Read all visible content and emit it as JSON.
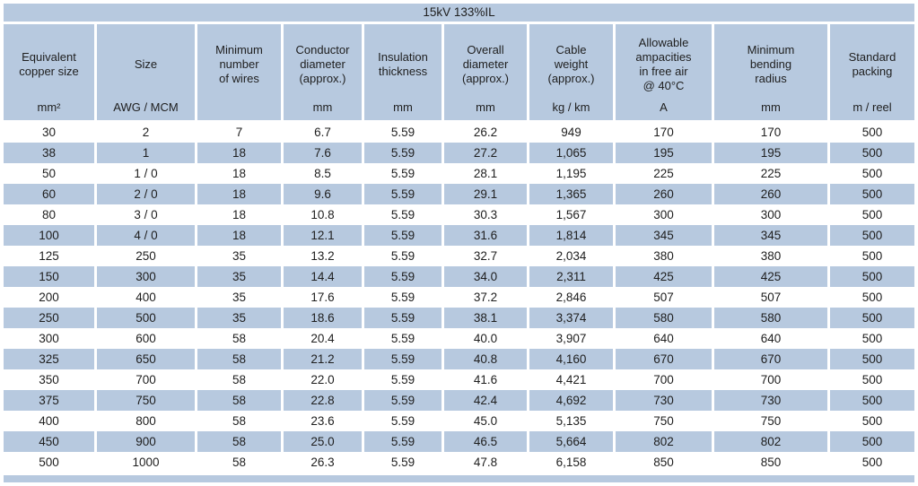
{
  "colors": {
    "accent_blue": "#b7c9df",
    "text": "#1e1e1e",
    "row_alt": "#ffffff"
  },
  "table": {
    "title": "15kV 133%IL",
    "columns": [
      {
        "label": "Equivalent\ncopper size",
        "unit": "mm²"
      },
      {
        "label": "Size",
        "unit": "AWG / MCM"
      },
      {
        "label": "Minimum\nnumber\nof wires",
        "unit": ""
      },
      {
        "label": "Conductor\ndiameter\n(approx.)",
        "unit": "mm"
      },
      {
        "label": "Insulation\nthickness",
        "unit": "mm"
      },
      {
        "label": "Overall\ndiameter\n(approx.)",
        "unit": "mm"
      },
      {
        "label": "Cable\nweight\n(approx.)",
        "unit": "kg / km"
      },
      {
        "label": "Allowable\nampacities\nin free air\n@ 40°C",
        "unit": "A"
      },
      {
        "label": "Minimum\nbending\nradius",
        "unit": "mm"
      },
      {
        "label": "Standard\npacking",
        "unit": "m / reel"
      }
    ],
    "rows": [
      [
        "30",
        "2",
        "7",
        "6.7",
        "5.59",
        "26.2",
        "949",
        "170",
        "170",
        "500"
      ],
      [
        "38",
        "1",
        "18",
        "7.6",
        "5.59",
        "27.2",
        "1,065",
        "195",
        "195",
        "500"
      ],
      [
        "50",
        "1 / 0",
        "18",
        "8.5",
        "5.59",
        "28.1",
        "1,195",
        "225",
        "225",
        "500"
      ],
      [
        "60",
        "2 / 0",
        "18",
        "9.6",
        "5.59",
        "29.1",
        "1,365",
        "260",
        "260",
        "500"
      ],
      [
        "80",
        "3 / 0",
        "18",
        "10.8",
        "5.59",
        "30.3",
        "1,567",
        "300",
        "300",
        "500"
      ],
      [
        "100",
        "4 / 0",
        "18",
        "12.1",
        "5.59",
        "31.6",
        "1,814",
        "345",
        "345",
        "500"
      ],
      [
        "125",
        "250",
        "35",
        "13.2",
        "5.59",
        "32.7",
        "2,034",
        "380",
        "380",
        "500"
      ],
      [
        "150",
        "300",
        "35",
        "14.4",
        "5.59",
        "34.0",
        "2,311",
        "425",
        "425",
        "500"
      ],
      [
        "200",
        "400",
        "35",
        "17.6",
        "5.59",
        "37.2",
        "2,846",
        "507",
        "507",
        "500"
      ],
      [
        "250",
        "500",
        "35",
        "18.6",
        "5.59",
        "38.1",
        "3,374",
        "580",
        "580",
        "500"
      ],
      [
        "300",
        "600",
        "58",
        "20.4",
        "5.59",
        "40.0",
        "3,907",
        "640",
        "640",
        "500"
      ],
      [
        "325",
        "650",
        "58",
        "21.2",
        "5.59",
        "40.8",
        "4,160",
        "670",
        "670",
        "500"
      ],
      [
        "350",
        "700",
        "58",
        "22.0",
        "5.59",
        "41.6",
        "4,421",
        "700",
        "700",
        "500"
      ],
      [
        "375",
        "750",
        "58",
        "22.8",
        "5.59",
        "42.4",
        "4,692",
        "730",
        "730",
        "500"
      ],
      [
        "400",
        "800",
        "58",
        "23.6",
        "5.59",
        "45.0",
        "5,135",
        "750",
        "750",
        "500"
      ],
      [
        "450",
        "900",
        "58",
        "25.0",
        "5.59",
        "46.5",
        "5,664",
        "802",
        "802",
        "500"
      ],
      [
        "500",
        "1000",
        "58",
        "26.3",
        "5.59",
        "47.8",
        "6,158",
        "850",
        "850",
        "500"
      ]
    ]
  }
}
